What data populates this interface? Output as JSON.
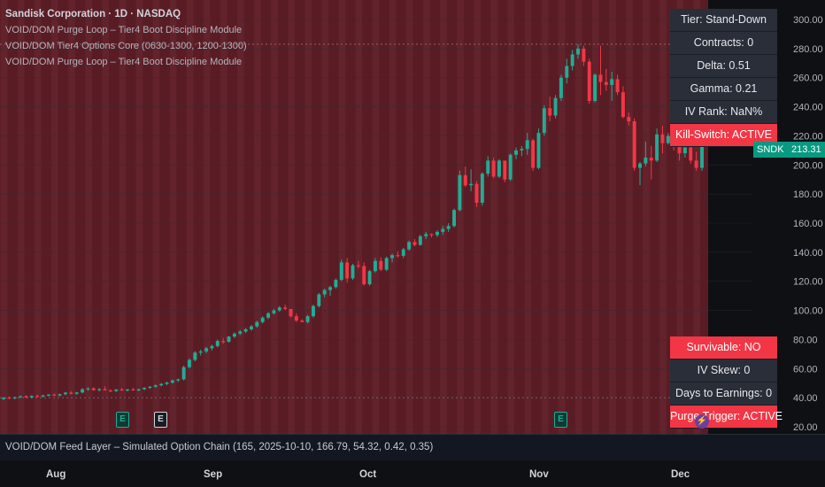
{
  "legend": {
    "title_prefix": "Sandisk Corporation · 1D · NASDAQ",
    "indicators": [
      "VOID/DOM Purge Loop – Tier4 Boot Discipline Module",
      "VOID/DOM Tier4 Options Core (0630-1300, 1200-1300)",
      "VOID/DOM Purge Loop – Tier4 Boot Discipline Module"
    ]
  },
  "top_panel": [
    {
      "text": "Tier: Stand-Down",
      "alert": false
    },
    {
      "text": "Contracts: 0",
      "alert": false
    },
    {
      "text": "Delta: 0.51",
      "alert": false
    },
    {
      "text": "Gamma: 0.21",
      "alert": false
    },
    {
      "text": "IV Rank: NaN%",
      "alert": false
    },
    {
      "text": "Kill-Switch: ACTIVE",
      "alert": true
    }
  ],
  "bottom_panel": [
    {
      "text": "Survivable: NO",
      "alert": true
    },
    {
      "text": "IV Skew: 0",
      "alert": false
    },
    {
      "text": "Days to Earnings: 0",
      "alert": false
    },
    {
      "text": "Purge Trigger: ACTIVE",
      "alert": true
    }
  ],
  "price_labels": {
    "symbol": "SNDK",
    "last": "213.31"
  },
  "feed_layer_text": "VOID/DOM Feed Layer – Simulated Option Chain (165, 2025-10-10, 166.79, 54.32, 0.42, 0.35)",
  "event_badges": [
    {
      "letter": "E",
      "style": "green"
    },
    {
      "letter": "E",
      "style": "white"
    },
    {
      "letter": "E",
      "style": "green"
    }
  ],
  "flash_icon": "lightning-icon",
  "colors": {
    "up": "#22ab94",
    "down": "#f23645",
    "background_overlay": "#5a1c24",
    "panel_bg": "#2a2e39",
    "alert_bg": "#f23645",
    "last_price_bg": "#089981"
  },
  "chart_data": {
    "type": "candlestick",
    "symbol": "SNDK",
    "interval": "1D",
    "exchange": "NASDAQ",
    "y_axis": {
      "min": 20,
      "max": 300,
      "ticks": [
        300,
        280,
        260,
        240,
        220,
        200,
        180,
        160,
        140,
        120,
        100,
        80,
        60,
        40,
        20
      ],
      "tick_labels": [
        "300.00",
        "280.00",
        "260.00",
        "240.00",
        "220.00",
        "200.00",
        "180.00",
        "160.00",
        "140.00",
        "120.00",
        "100.00",
        "80.00",
        "60.00",
        "40.00",
        "20.00"
      ]
    },
    "x_axis": {
      "labels": [
        "Aug",
        "Sep",
        "Oct",
        "Nov",
        "Dec"
      ]
    },
    "last_price": 213.31,
    "hlines": [
      40,
      283
    ],
    "ohlc": [
      [
        39.0,
        40.5,
        38.5,
        40.0
      ],
      [
        40.0,
        41.0,
        39.2,
        39.6
      ],
      [
        39.6,
        40.8,
        38.8,
        40.3
      ],
      [
        40.3,
        41.5,
        39.6,
        41.0
      ],
      [
        41.0,
        41.8,
        39.8,
        40.2
      ],
      [
        40.2,
        41.6,
        39.6,
        41.2
      ],
      [
        41.2,
        42.2,
        40.5,
        40.8
      ],
      [
        40.8,
        42.0,
        40.1,
        41.6
      ],
      [
        41.6,
        42.5,
        40.9,
        42.1
      ],
      [
        42.1,
        43.0,
        41.3,
        41.5
      ],
      [
        41.5,
        42.8,
        40.8,
        42.4
      ],
      [
        42.4,
        43.9,
        41.6,
        43.5
      ],
      [
        43.5,
        44.5,
        42.2,
        42.7
      ],
      [
        42.7,
        44.0,
        42.0,
        43.6
      ],
      [
        43.6,
        46.5,
        43.0,
        45.8
      ],
      [
        45.8,
        47.0,
        44.8,
        46.4
      ],
      [
        46.4,
        47.2,
        44.8,
        45.2
      ],
      [
        45.2,
        46.5,
        44.2,
        45.9
      ],
      [
        45.9,
        47.8,
        45.2,
        45.0
      ],
      [
        45.0,
        45.8,
        43.8,
        44.6
      ],
      [
        44.6,
        46.0,
        43.9,
        45.6
      ],
      [
        45.6,
        46.8,
        44.8,
        44.9
      ],
      [
        44.9,
        46.1,
        44.2,
        45.7
      ],
      [
        45.7,
        46.8,
        44.9,
        45.1
      ],
      [
        45.1,
        46.2,
        44.4,
        45.9
      ],
      [
        45.9,
        47.2,
        45.1,
        46.8
      ],
      [
        46.8,
        48.0,
        46.0,
        47.5
      ],
      [
        47.5,
        49.0,
        46.8,
        48.5
      ],
      [
        48.5,
        50.0,
        47.8,
        49.5
      ],
      [
        49.5,
        51.0,
        48.6,
        50.4
      ],
      [
        50.4,
        52.5,
        49.5,
        51.9
      ],
      [
        51.9,
        53.2,
        50.8,
        52.6
      ],
      [
        52.6,
        62.0,
        52.0,
        61.0
      ],
      [
        61.0,
        67.0,
        60.0,
        66.0
      ],
      [
        66.0,
        72.0,
        65.0,
        71.0
      ],
      [
        71.0,
        73.0,
        69.0,
        71.8
      ],
      [
        71.8,
        75.0,
        70.5,
        74.0
      ],
      [
        74.0,
        76.5,
        72.5,
        75.5
      ],
      [
        75.5,
        80.0,
        74.5,
        79.0
      ],
      [
        79.0,
        81.0,
        77.0,
        78.5
      ],
      [
        78.5,
        82.5,
        77.8,
        82.0
      ],
      [
        82.0,
        85.0,
        81.0,
        84.0
      ],
      [
        84.0,
        86.5,
        83.0,
        85.5
      ],
      [
        85.5,
        88.0,
        84.5,
        87.0
      ],
      [
        87.0,
        90.0,
        86.0,
        89.0
      ],
      [
        89.0,
        93.0,
        88.0,
        92.0
      ],
      [
        92.0,
        96.0,
        91.0,
        95.0
      ],
      [
        95.0,
        99.0,
        94.0,
        98.0
      ],
      [
        98.0,
        101.0,
        97.0,
        100.0
      ],
      [
        100.0,
        103.0,
        99.0,
        102.0
      ],
      [
        102.0,
        104.0,
        100.0,
        101.0
      ],
      [
        101.0,
        99.5,
        95.0,
        96.0
      ],
      [
        96.0,
        98.0,
        92.0,
        93.0
      ],
      [
        93.0,
        94.0,
        92.5,
        92.0
      ],
      [
        92.0,
        97.0,
        91.0,
        96.0
      ],
      [
        96.0,
        104.0,
        95.0,
        103.0
      ],
      [
        103.0,
        112.0,
        102.0,
        111.0
      ],
      [
        111.0,
        115.0,
        109.0,
        114.0
      ],
      [
        114.0,
        117.0,
        110.0,
        116.0
      ],
      [
        116.0,
        122.0,
        115.0,
        121.0
      ],
      [
        121.0,
        135.0,
        120.0,
        133.0
      ],
      [
        133.0,
        136.0,
        119.0,
        122.0
      ],
      [
        122.0,
        132.0,
        121.0,
        131.0
      ],
      [
        131.0,
        134.0,
        129.0,
        130.5
      ],
      [
        130.5,
        133.0,
        117.0,
        118.0
      ],
      [
        118.0,
        128.0,
        117.0,
        127.0
      ],
      [
        127.0,
        136.0,
        126.0,
        134.0
      ],
      [
        134.0,
        136.5,
        127.0,
        128.0
      ],
      [
        128.0,
        137.0,
        127.0,
        136.0
      ],
      [
        136.0,
        139.0,
        133.0,
        138.0
      ],
      [
        138.0,
        140.5,
        136.5,
        137.5
      ],
      [
        137.5,
        143.0,
        136.0,
        142.0
      ],
      [
        142.0,
        148.0,
        141.0,
        147.0
      ],
      [
        147.0,
        149.0,
        144.0,
        145.0
      ],
      [
        145.0,
        152.0,
        144.5,
        151.0
      ],
      [
        151.0,
        154.0,
        149.0,
        152.5
      ],
      [
        152.5,
        153.0,
        150.0,
        151.8
      ],
      [
        151.8,
        155.0,
        150.5,
        154.0
      ],
      [
        154.0,
        158.0,
        152.0,
        156.0
      ],
      [
        156.0,
        160.0,
        154.0,
        158.0
      ],
      [
        158.0,
        170.0,
        157.0,
        169.0
      ],
      [
        169.0,
        196.0,
        168.0,
        193.0
      ],
      [
        193.0,
        199.0,
        185.0,
        186.0
      ],
      [
        186.0,
        197.0,
        182.0,
        187.0
      ],
      [
        187.0,
        189.0,
        171.0,
        174.0
      ],
      [
        174.0,
        195.0,
        172.0,
        194.0
      ],
      [
        194.0,
        206.0,
        192.0,
        203.0
      ],
      [
        203.0,
        205.0,
        191.0,
        192.0
      ],
      [
        192.0,
        204.0,
        191.0,
        203.0
      ],
      [
        203.0,
        202.0,
        188.0,
        190.0
      ],
      [
        190.0,
        208.0,
        189.0,
        207.0
      ],
      [
        207.0,
        212.0,
        204.0,
        210.0
      ],
      [
        210.0,
        213.0,
        206.0,
        211.0
      ],
      [
        211.0,
        222.0,
        207.0,
        217.0
      ],
      [
        217.0,
        218.0,
        196.0,
        198.0
      ],
      [
        198.0,
        225.0,
        197.0,
        222.0
      ],
      [
        222.0,
        241.0,
        220.0,
        239.0
      ],
      [
        239.0,
        247.0,
        230.0,
        234.0
      ],
      [
        234.0,
        248.0,
        232.0,
        246.0
      ],
      [
        246.0,
        262.0,
        244.0,
        260.0
      ],
      [
        260.0,
        273.0,
        256.0,
        268.0
      ],
      [
        268.0,
        279.0,
        265.0,
        276.0
      ],
      [
        276.0,
        283.0,
        273.0,
        280.0
      ],
      [
        280.0,
        282.0,
        268.0,
        271.0
      ],
      [
        271.0,
        273.0,
        242.0,
        244.0
      ],
      [
        244.0,
        263.0,
        243.0,
        262.0
      ],
      [
        262.0,
        282.0,
        248.0,
        257.0
      ],
      [
        257.0,
        266.0,
        251.0,
        255.0
      ],
      [
        255.0,
        264.0,
        244.0,
        259.0
      ],
      [
        259.0,
        262.0,
        248.0,
        250.0
      ],
      [
        250.0,
        254.0,
        232.0,
        233.0
      ],
      [
        233.0,
        236.0,
        227.0,
        230.0
      ],
      [
        230.0,
        232.0,
        196.0,
        198.0
      ],
      [
        198.0,
        202.0,
        186.0,
        201.0
      ],
      [
        201.0,
        216.0,
        199.0,
        205.0
      ],
      [
        205.0,
        213.0,
        190.0,
        203.0
      ],
      [
        203.0,
        225.0,
        202.0,
        221.0
      ],
      [
        221.0,
        227.0,
        208.0,
        215.0
      ],
      [
        215.0,
        222.0,
        214.0,
        220.0
      ],
      [
        220.0,
        227.0,
        210.0,
        213.0
      ],
      [
        213.0,
        220.0,
        203.0,
        208.0
      ],
      [
        208.0,
        216.0,
        205.0,
        212.0
      ],
      [
        212.0,
        214.0,
        201.0,
        203.0
      ],
      [
        203.0,
        209.0,
        196.0,
        198.0
      ],
      [
        198.0,
        214.0,
        196.0,
        213.31
      ]
    ]
  }
}
